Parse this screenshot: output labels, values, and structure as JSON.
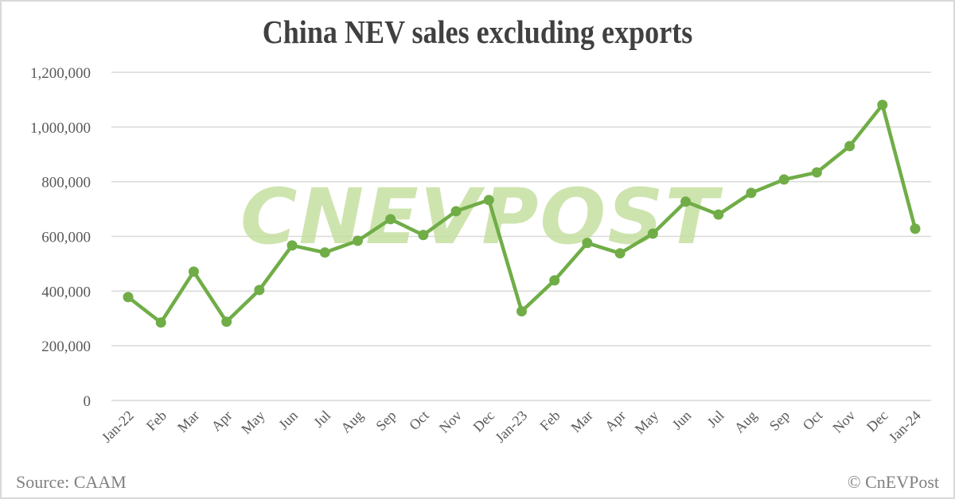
{
  "title": "China NEV sales excluding exports",
  "footer": {
    "source": "Source: CAAM",
    "credit": "© CnEVPost"
  },
  "watermark": "CNEVPOST",
  "colors": {
    "line": "#70ad47",
    "marker": "#70ad47",
    "grid": "#d9d9d9",
    "watermark": "#c6e0a0",
    "text": "#595959"
  },
  "chart_data": {
    "type": "line",
    "title": "China NEV sales excluding exports",
    "xlabel": "",
    "ylabel": "",
    "ylim": [
      0,
      1200000
    ],
    "yticks": [
      0,
      200000,
      400000,
      600000,
      800000,
      1000000,
      1200000
    ],
    "ytick_labels": [
      "0",
      "200,000",
      "400,000",
      "600,000",
      "800,000",
      "1,000,000",
      "1,200,000"
    ],
    "grid": true,
    "legend": "none",
    "categories": [
      "Jan-22",
      "Feb",
      "Mar",
      "Apr",
      "May",
      "Jun",
      "Jul",
      "Aug",
      "Sep",
      "Oct",
      "Nov",
      "Dec",
      "Jan-23",
      "Feb",
      "Mar",
      "Apr",
      "May",
      "Jun",
      "Jul",
      "Aug",
      "Sep",
      "Oct",
      "Nov",
      "Dec",
      "Jan-24"
    ],
    "series": [
      {
        "name": "China NEV sales excluding exports",
        "values": [
          378000,
          285000,
          471000,
          288000,
          404000,
          567000,
          541000,
          584000,
          663000,
          605000,
          692000,
          733000,
          326000,
          439000,
          576000,
          538000,
          610000,
          727000,
          680000,
          759000,
          808000,
          834000,
          930000,
          1081000,
          628000
        ]
      }
    ],
    "annotations": [
      "Source: CAAM",
      "© CnEVPost"
    ]
  }
}
